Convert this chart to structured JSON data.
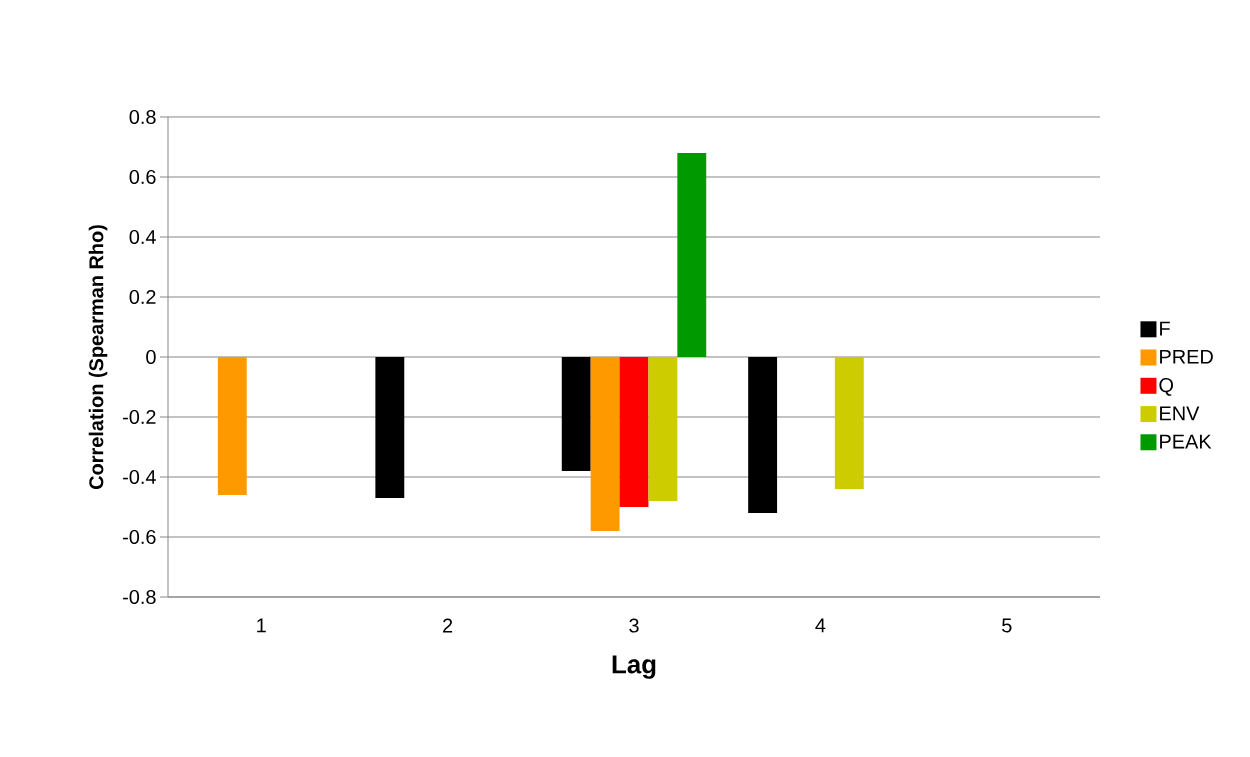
{
  "chart_data": {
    "type": "bar",
    "xlabel": "Lag",
    "ylabel": "Correlation (Spearman Rho)",
    "categories": [
      "1",
      "2",
      "3",
      "4",
      "5"
    ],
    "series": [
      {
        "name": "F",
        "color": "#000000",
        "values": [
          null,
          -0.47,
          -0.38,
          -0.52,
          null
        ]
      },
      {
        "name": "PRED",
        "color": "#ff9900",
        "values": [
          -0.46,
          null,
          -0.58,
          null,
          null
        ]
      },
      {
        "name": "Q",
        "color": "#ff0000",
        "values": [
          null,
          null,
          -0.5,
          null,
          null
        ]
      },
      {
        "name": "ENV",
        "color": "#cccc00",
        "values": [
          null,
          null,
          -0.48,
          -0.44,
          null
        ]
      },
      {
        "name": "PEAK",
        "color": "#009900",
        "values": [
          null,
          null,
          0.68,
          null,
          null
        ]
      }
    ],
    "ylim": [
      -0.8,
      0.8
    ],
    "yticks": [
      -0.8,
      -0.6,
      -0.4,
      -0.2,
      0,
      0.2,
      0.4,
      0.6,
      0.8
    ],
    "grid": "y",
    "legend": "right"
  }
}
